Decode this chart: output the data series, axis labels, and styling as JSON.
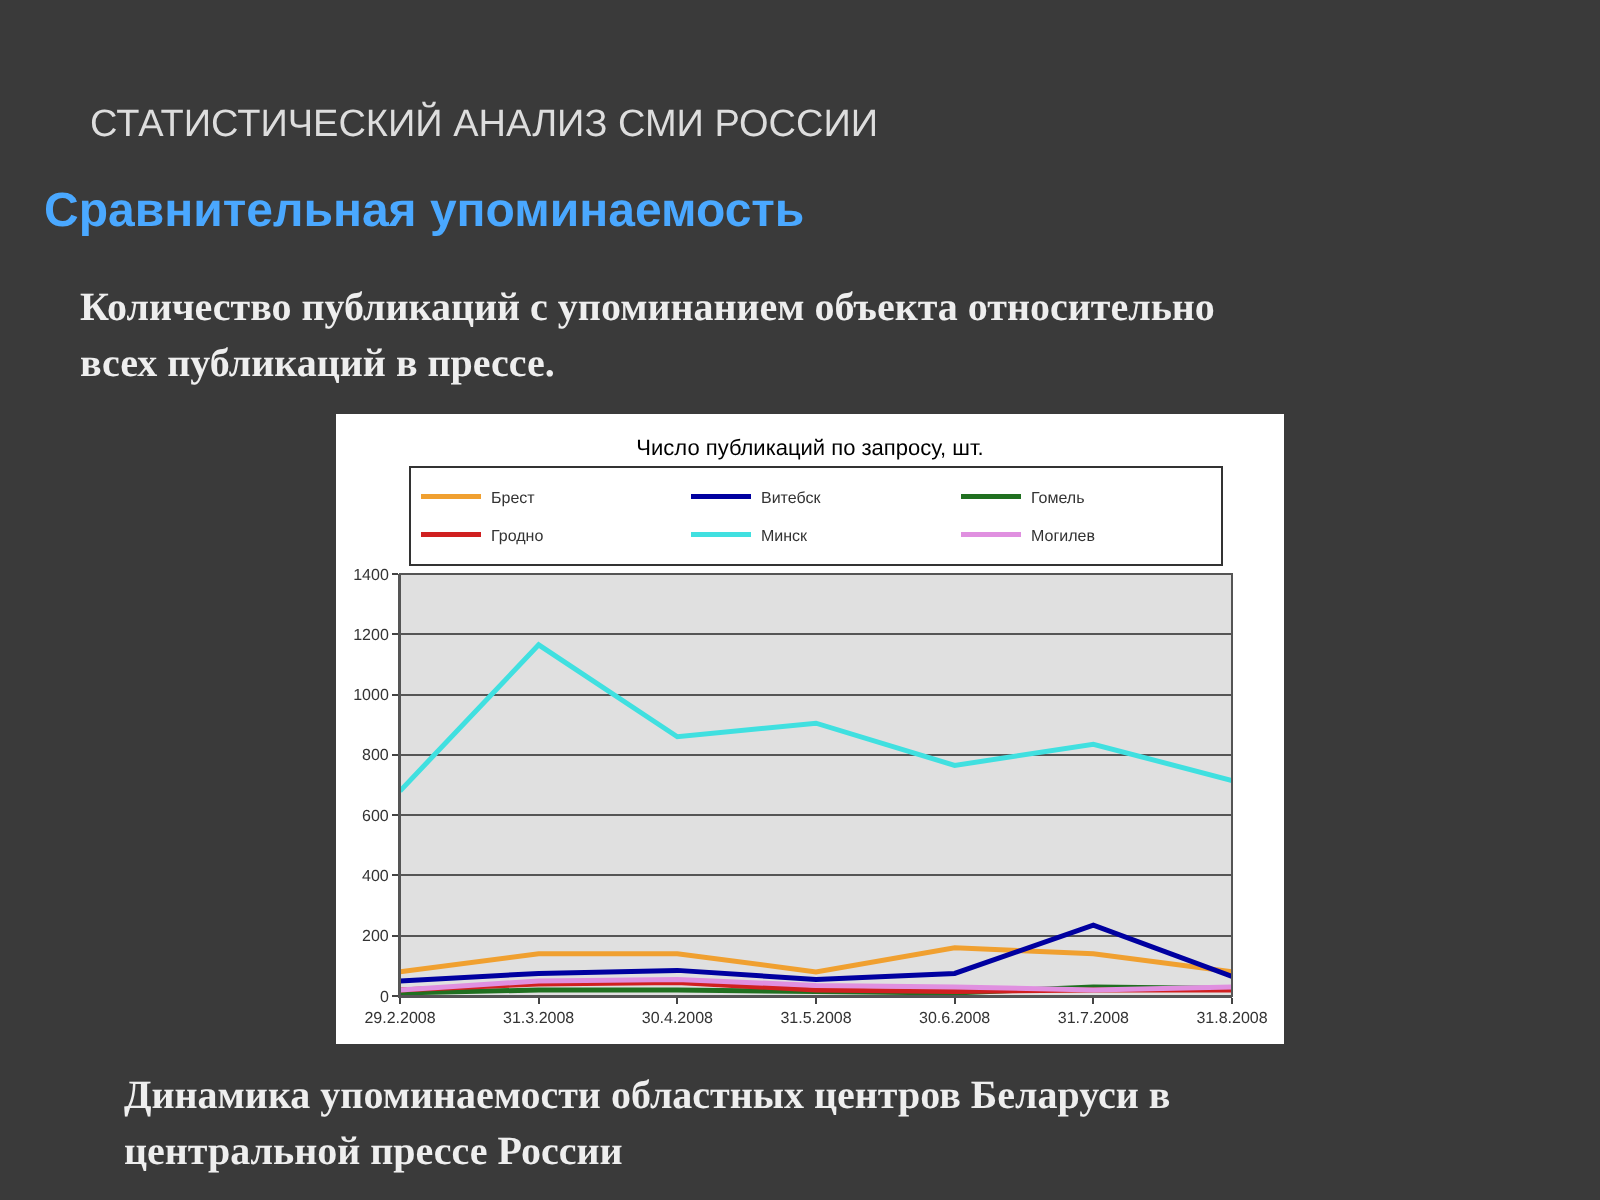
{
  "chart_data": {
    "type": "line",
    "title": "Число публикаций по запросу, шт.",
    "annotations": [
      "СТАТИСТИЧЕСКИЙ АНАЛИЗ СМИ РОССИИ",
      "Сравнительная упоминаемость",
      "Количество публикаций с упоминанием объекта относительно всех публикаций в прессе.",
      "Динамика упоминаемости областных центров Беларуси в центральной прессе России"
    ],
    "categories": [
      "29.2.2008",
      "31.3.2008",
      "30.4.2008",
      "31.5.2008",
      "30.6.2008",
      "31.7.2008",
      "31.8.2008"
    ],
    "series": [
      {
        "name": "Брест",
        "color": "#f0a030",
        "values": [
          80,
          140,
          140,
          80,
          160,
          140,
          80
        ]
      },
      {
        "name": "Витебск",
        "color": "#0000a0",
        "values": [
          50,
          75,
          85,
          55,
          75,
          235,
          65
        ]
      },
      {
        "name": "Гомель",
        "color": "#207020",
        "values": [
          10,
          20,
          20,
          15,
          10,
          30,
          25
        ]
      },
      {
        "name": "Гродно",
        "color": "#d02020",
        "values": [
          20,
          40,
          45,
          20,
          15,
          20,
          20
        ]
      },
      {
        "name": "Минск",
        "color": "#40e0e0",
        "values": [
          680,
          1165,
          860,
          905,
          765,
          835,
          715
        ]
      },
      {
        "name": "Могилев",
        "color": "#e090e0",
        "values": [
          20,
          50,
          55,
          35,
          30,
          20,
          30
        ]
      }
    ],
    "ylim": [
      0,
      1400
    ],
    "yticks": [
      0,
      200,
      400,
      600,
      800,
      1000,
      1200,
      1400
    ],
    "grid": "y",
    "legend": "top",
    "marker": "none",
    "line_style": "solid"
  }
}
